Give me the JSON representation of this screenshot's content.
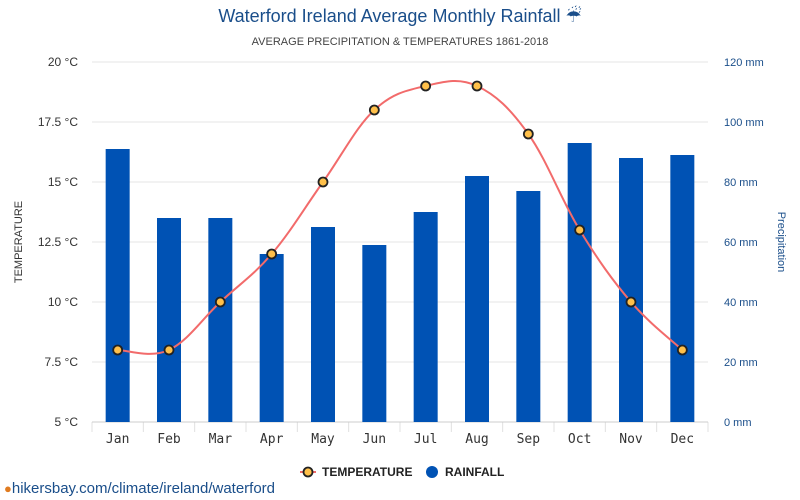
{
  "title": "Waterford Ireland Average Monthly Rainfall",
  "title_icon": "☔",
  "subtitle": "AVERAGE PRECIPITATION & TEMPERATURES 1861-2018",
  "footer": {
    "url": "hikersbay.com/climate/ireland/waterford",
    "icon": "location-pin"
  },
  "colors": {
    "bar": "#0052b4",
    "line": "#f26b6b",
    "marker_fill": "#ffc04a",
    "marker_stroke": "#222222",
    "axis_right": "#1a4e8a"
  },
  "chart_data": {
    "type": "bar",
    "categories": [
      "Jan",
      "Feb",
      "Mar",
      "Apr",
      "May",
      "Jun",
      "Jul",
      "Aug",
      "Sep",
      "Oct",
      "Nov",
      "Dec"
    ],
    "y_left": {
      "label": "TEMPERATURE",
      "range": [
        5,
        20
      ],
      "ticks": [
        "5 °C",
        "7.5 °C",
        "10 °C",
        "12.5 °C",
        "15 °C",
        "17.5 °C",
        "20 °C"
      ],
      "tick_values": [
        5,
        7.5,
        10,
        12.5,
        15,
        17.5,
        20
      ]
    },
    "y_right": {
      "label": "Precipitation",
      "range": [
        0,
        120
      ],
      "ticks": [
        "0 mm",
        "20 mm",
        "40 mm",
        "60 mm",
        "80 mm",
        "100 mm",
        "120 mm"
      ],
      "tick_values": [
        0,
        20,
        40,
        60,
        80,
        100,
        120
      ]
    },
    "series": [
      {
        "name": "TEMPERATURE",
        "type": "line",
        "axis": "left",
        "values": [
          8,
          8,
          10,
          12,
          15,
          18,
          19,
          19,
          17,
          13,
          10,
          8
        ]
      },
      {
        "name": "RAINFALL",
        "type": "bar",
        "axis": "right",
        "values": [
          91,
          68,
          68,
          56,
          65,
          59,
          70,
          82,
          77,
          93,
          88,
          89
        ]
      }
    ],
    "grid": true,
    "legend_position": "bottom"
  }
}
